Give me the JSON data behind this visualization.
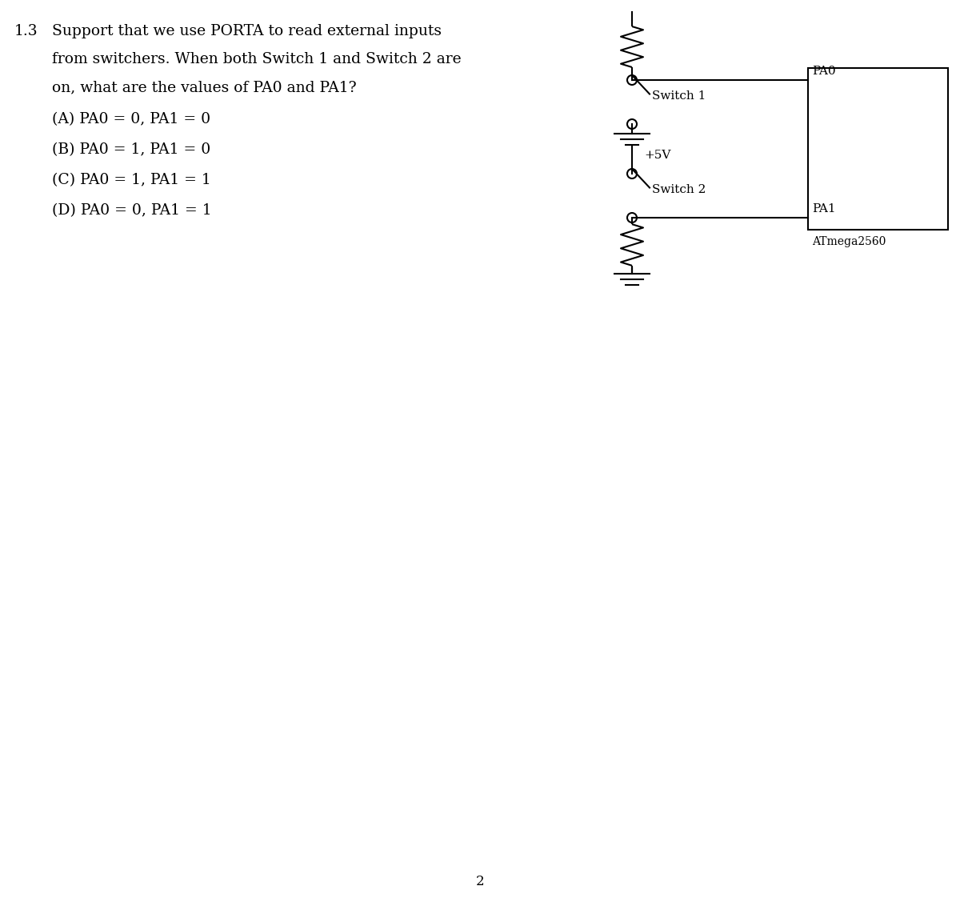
{
  "title_number": "1.3",
  "question_text_line1": "Support that we use PORTA to read external inputs",
  "question_text_line2": "from switchers. When both Switch 1 and Switch 2 are",
  "question_text_line3": "on, what are the values of PA0 and PA1?",
  "option_A": "(A) PA0 = 0, PA1 = 0",
  "option_B": "(B) PA0 = 1, PA1 = 0",
  "option_C": "(C) PA0 = 1, PA1 = 1",
  "option_D": "(D) PA0 = 0, PA1 = 1",
  "label_switch1": "Switch 1",
  "label_switch2": "Switch 2",
  "label_5v": "+5V",
  "label_PA0": "PA0",
  "label_PA1": "PA1",
  "label_chip": "ATmega2560",
  "page_number": "2",
  "bg_color": "#ffffff",
  "text_color": "#000000",
  "line_color": "#000000",
  "font_size_question": 13.5,
  "font_size_options": 13.5,
  "font_size_label": 11,
  "font_size_chip": 10,
  "lw": 1.5
}
